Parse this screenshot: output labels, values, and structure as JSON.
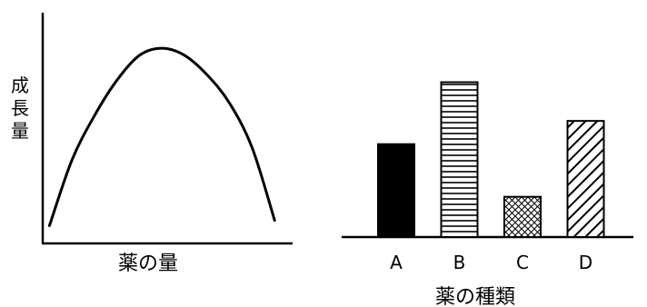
{
  "chart_data": [
    {
      "type": "line",
      "ylabel": "成長量",
      "xlabel": "薬の量",
      "grid": false,
      "note": "",
      "x": [
        0,
        1,
        2,
        3,
        4,
        5,
        6,
        7,
        8,
        9,
        10
      ],
      "y": [
        0.0,
        0.37,
        0.62,
        0.82,
        0.96,
        1.0,
        0.96,
        0.85,
        0.69,
        0.44,
        0.03
      ],
      "xlim": [
        -0.3,
        10.8
      ],
      "ylim": [
        -0.1,
        1.2
      ]
    },
    {
      "type": "bar",
      "categories": [
        "A",
        "B",
        "C",
        "D"
      ],
      "values": [
        0.6,
        1.0,
        0.26,
        0.75
      ],
      "patterns": [
        "solid",
        "horizontal-lines",
        "crosshatch",
        "diagonal-lines"
      ],
      "xlabel": "薬の種類",
      "ylim": [
        0,
        1.05
      ],
      "grid": false
    }
  ]
}
